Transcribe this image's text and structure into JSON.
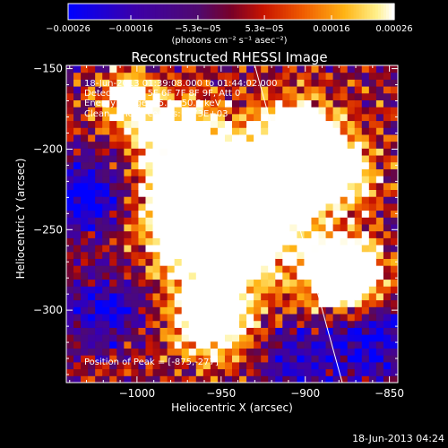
{
  "chart_data": {
    "type": "heatmap",
    "title": "Reconstructed RHESSI Image",
    "xlabel": "Heliocentric X (arcsec)",
    "ylabel": "Heliocentric Y (arcsec)",
    "xlim": [
      -1042,
      -845
    ],
    "ylim": [
      -345,
      -148
    ],
    "x_ticks": [
      -1000,
      -950,
      -900,
      -850
    ],
    "x_tick_labels": [
      "−1000",
      "−950",
      "−900",
      "−850"
    ],
    "y_ticks": [
      -150,
      -200,
      -250,
      -300
    ],
    "y_tick_labels": [
      "−150",
      "−200",
      "−250",
      "−300"
    ],
    "colorbar": {
      "range": [
        -0.00026,
        0.00026
      ],
      "ticks": [
        -0.00026,
        -0.00016,
        -5.3e-05,
        5.3e-05,
        0.00016,
        0.00026
      ],
      "tick_labels": [
        "−0.00026",
        "−0.00016",
        "−5.3e−05",
        "5.3e−05",
        "0.00016",
        "0.00026"
      ],
      "unit_label": "(photons cm⁻² s⁻¹ asec⁻²)"
    },
    "limb_line": {
      "x": [
        -930,
        -878
      ],
      "y": [
        -148,
        -345
      ]
    },
    "peak": {
      "x": -875,
      "y": -277
    },
    "annotations": [
      "18-Jun-2013 01:39:08.000 to 01:44:02.000",
      "Detectors: 3F 5F 6F 7F 8F 9F, Att 0",
      "Energy Range: 25.0 - 50.0 keV",
      "Clean     Total counts: 7.73E+03"
    ],
    "peak_label": "Position of Peak = [-875,-277]",
    "sources": [
      {
        "x": -958,
        "y": -245,
        "amp": 0.0008,
        "sigma": 22
      },
      {
        "x": -930,
        "y": -235,
        "amp": 0.00055,
        "sigma": 25
      },
      {
        "x": -975,
        "y": -195,
        "amp": 0.00045,
        "sigma": 18
      },
      {
        "x": -905,
        "y": -195,
        "amp": 0.0005,
        "sigma": 18
      },
      {
        "x": -880,
        "y": -215,
        "amp": 0.0004,
        "sigma": 15
      },
      {
        "x": -877,
        "y": -278,
        "amp": 0.00075,
        "sigma": 14
      },
      {
        "x": -955,
        "y": -305,
        "amp": 0.00055,
        "sigma": 16
      },
      {
        "x": -1005,
        "y": -170,
        "amp": 0.00035,
        "sigma": 12
      },
      {
        "x": -1030,
        "y": -230,
        "amp": -0.0003,
        "sigma": 15
      },
      {
        "x": -1020,
        "y": -300,
        "amp": -0.00025,
        "sigma": 15
      },
      {
        "x": -860,
        "y": -320,
        "amp": -0.00025,
        "sigma": 18
      },
      {
        "x": -905,
        "y": -330,
        "amp": -0.0002,
        "sigma": 14
      }
    ]
  },
  "footer_timestamp": "18-Jun-2013 04:24"
}
